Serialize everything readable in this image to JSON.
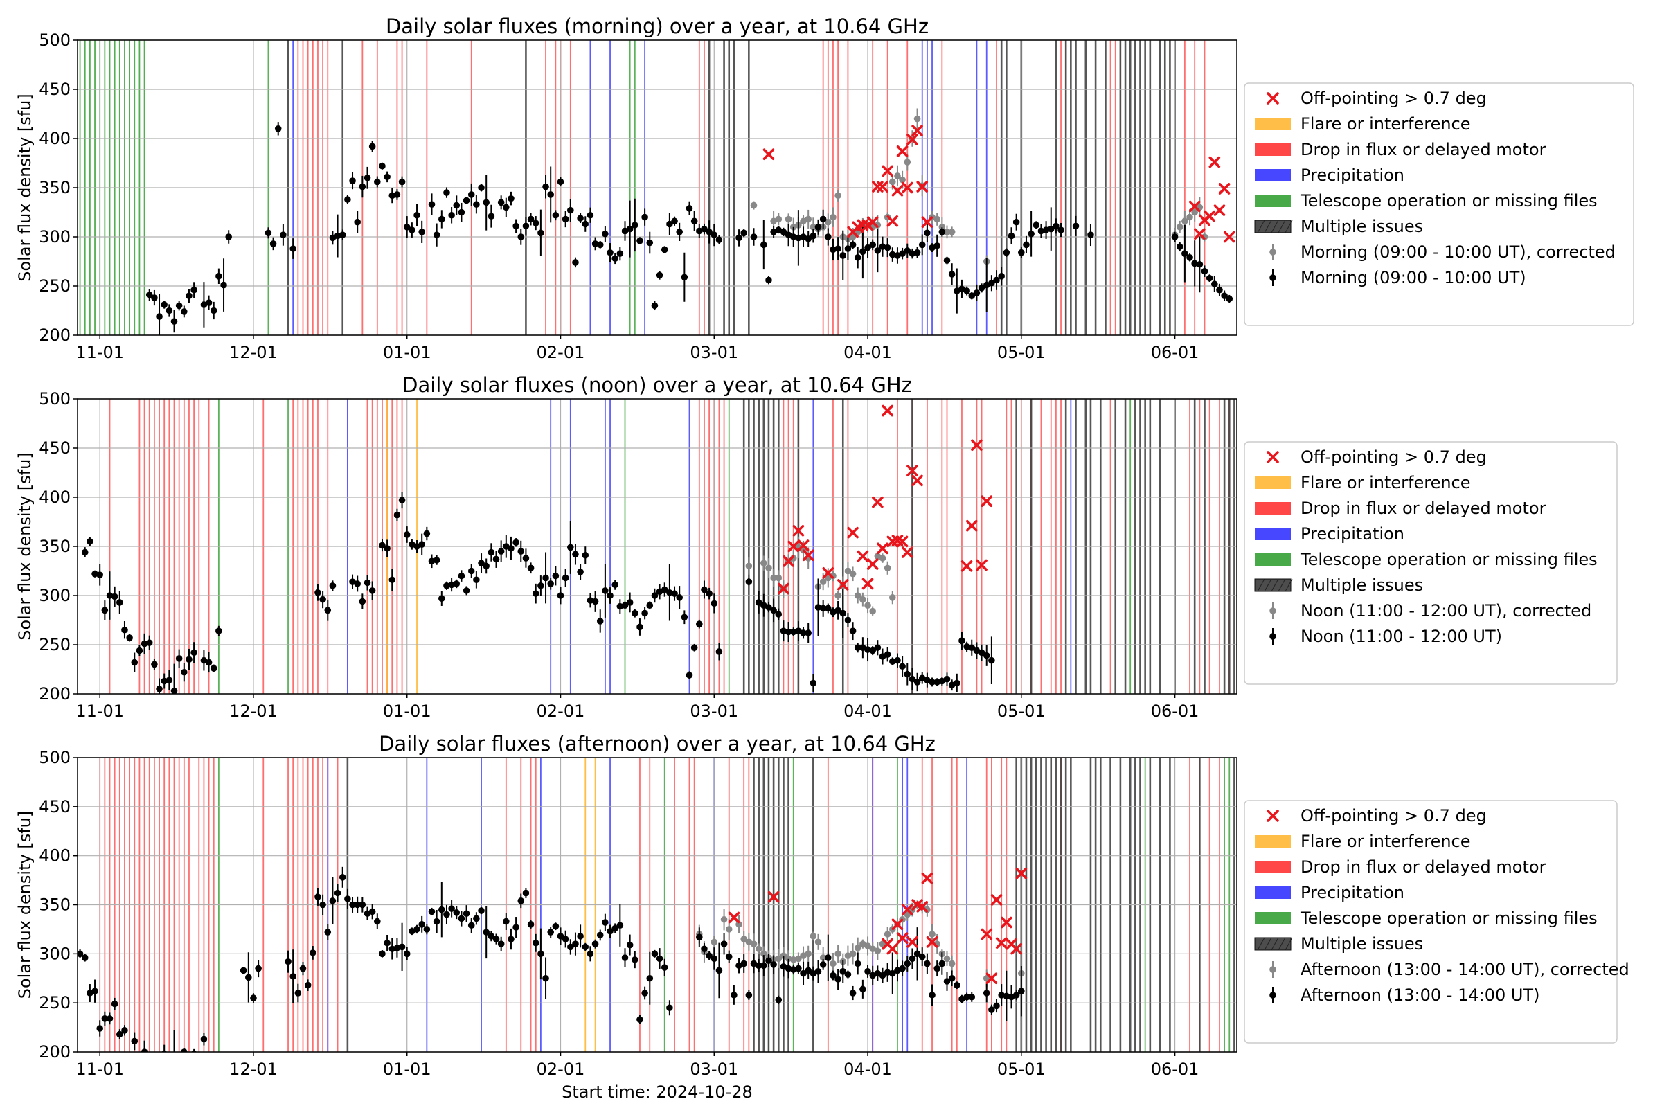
{
  "chart_data": [
    {
      "type": "scatter",
      "title": "Daily solar fluxes (morning) over a year, at 10.64 GHz",
      "ylabel": "Solar flux density [sfu]",
      "xlabel": "",
      "ylim": [
        200,
        500
      ],
      "yticks": [
        "200",
        "250",
        "300",
        "350",
        "400",
        "450",
        "500"
      ],
      "xticks": [
        "11-01",
        "12-01",
        "01-01",
        "02-01",
        "03-01",
        "04-01",
        "05-01",
        "06-01"
      ],
      "grid": true,
      "legend_position": "right",
      "legend": [
        "Off-pointing > 0.7 deg",
        "Flare or interference",
        "Drop in flux or delayed motor",
        "Precipitation",
        "Telescope operation or missing files",
        "Multiple issues",
        "Morning (09:00 - 10:00 UT), corrected",
        "Morning (09:00 - 10:00 UT)"
      ],
      "series": [
        {
          "name": "Morning (09:00 - 10:00 UT)",
          "x": [
            14,
            15,
            16,
            17,
            18,
            19,
            20,
            21,
            22,
            23,
            25,
            26,
            27,
            28,
            29,
            30,
            38,
            39,
            40,
            41,
            43,
            51,
            52,
            53,
            54,
            55,
            56,
            57,
            58,
            59,
            60,
            61,
            62,
            63,
            64,
            65,
            66,
            67,
            68,
            69,
            71,
            72,
            73,
            74,
            75,
            76,
            77,
            78,
            79,
            80,
            81,
            82,
            83,
            85,
            86,
            87,
            88,
            89,
            90,
            91,
            92,
            93,
            94,
            95,
            96,
            97,
            98,
            99,
            100,
            101,
            102,
            103,
            104,
            105,
            106,
            107,
            108,
            109,
            110,
            111,
            112,
            113,
            114,
            115,
            116,
            117,
            118,
            119,
            120,
            121,
            122,
            123,
            124,
            125,
            126,
            127,
            128,
            129,
            133,
            134,
            136,
            138,
            139,
            140,
            141,
            142,
            143,
            144,
            145,
            146,
            147,
            148,
            149,
            150,
            151,
            152,
            153,
            154,
            155,
            156,
            157,
            158,
            159,
            160,
            161,
            162,
            163,
            164,
            165,
            166,
            167,
            168,
            169,
            170,
            171,
            172,
            173,
            174,
            175,
            176,
            177,
            178,
            179,
            180,
            181,
            182,
            183,
            184,
            185,
            186,
            187,
            188,
            189,
            190,
            191,
            192,
            193,
            194,
            195,
            196,
            197,
            198,
            201,
            204,
            221,
            222,
            223,
            224,
            225,
            226,
            227,
            228,
            229,
            230,
            231,
            232
          ],
          "y": [
            241,
            238,
            219,
            231,
            225,
            214,
            230,
            224,
            240,
            246,
            231,
            233,
            225,
            260,
            251,
            300,
            304,
            293,
            410,
            302,
            288,
            299,
            301,
            302,
            338,
            357,
            315,
            351,
            360,
            392,
            356,
            372,
            361,
            342,
            343,
            356,
            310,
            307,
            322,
            305,
            333,
            302,
            318,
            345,
            322,
            332,
            325,
            337,
            343,
            333,
            350,
            335,
            321,
            335,
            330,
            339,
            311,
            300,
            311,
            318,
            314,
            304,
            351,
            343,
            322,
            356,
            318,
            327,
            274,
            319,
            313,
            322,
            293,
            292,
            303,
            284,
            278,
            283,
            306,
            308,
            312,
            296,
            320,
            294,
            230,
            261,
            287,
            313,
            316,
            305,
            259,
            329,
            316,
            306,
            308,
            305,
            302,
            297,
            299,
            304,
            300,
            292,
            256,
            305,
            307,
            305,
            302,
            300,
            299,
            300,
            298,
            301,
            310,
            318,
            300,
            287,
            288,
            281,
            288,
            292,
            279,
            285,
            289,
            292,
            286,
            290,
            289,
            282,
            281,
            283,
            286,
            283,
            284,
            292,
            304,
            289,
            291,
            305,
            276,
            262,
            245,
            247,
            245,
            240,
            243,
            248,
            251,
            253,
            256,
            260,
            284,
            301,
            315,
            284,
            292,
            303,
            312,
            306,
            307,
            308,
            311,
            307,
            311,
            302,
            300,
            290,
            283,
            279,
            273,
            272,
            265,
            258,
            252,
            246,
            240,
            237
          ]
        }
      ]
    },
    {
      "type": "scatter",
      "title": "Daily solar fluxes (noon) over a year, at 10.64 GHz",
      "ylabel": "Solar flux density [sfu]",
      "xlabel": "",
      "ylim": [
        200,
        500
      ],
      "yticks": [
        "200",
        "250",
        "300",
        "350",
        "400",
        "450",
        "500"
      ],
      "xticks": [
        "11-01",
        "12-01",
        "01-01",
        "02-01",
        "03-01",
        "04-01",
        "05-01",
        "06-01"
      ],
      "grid": true,
      "legend_position": "right",
      "legend": [
        "Off-pointing > 0.7 deg",
        "Flare or interference",
        "Drop in flux or delayed motor",
        "Precipitation",
        "Telescope operation or missing files",
        "Multiple issues",
        "Noon (11:00 - 12:00 UT), corrected",
        "Noon (11:00 - 12:00 UT)"
      ],
      "series": [
        {
          "name": "Noon (11:00 - 12:00 UT)",
          "x": [
            1,
            2,
            3,
            4,
            5,
            6,
            7,
            8,
            9,
            10,
            11,
            12,
            13,
            14,
            15,
            16,
            17,
            18,
            19,
            20,
            21,
            22,
            23,
            25,
            26,
            27,
            28
          ],
          "y": [
            344,
            355,
            322,
            321,
            285,
            300,
            299,
            293,
            265,
            257,
            232,
            244,
            251,
            252,
            230,
            205,
            213,
            214,
            203,
            236,
            222,
            235,
            242,
            234,
            232,
            226,
            264
          ]
        }
      ]
    },
    {
      "type": "scatter",
      "title": "Daily solar fluxes (afternoon) over a year, at 10.64 GHz",
      "ylabel": "Solar flux density [sfu]",
      "xlabel": "Start time: 2024-10-28",
      "ylim": [
        200,
        500
      ],
      "yticks": [
        "200",
        "250",
        "300",
        "350",
        "400",
        "450",
        "500"
      ],
      "xticks": [
        "11-01",
        "12-01",
        "01-01",
        "02-01",
        "03-01",
        "04-01",
        "05-01",
        "06-01"
      ],
      "grid": true,
      "legend_position": "right",
      "legend": [
        "Off-pointing > 0.7 deg",
        "Flare or interference",
        "Drop in flux or delayed motor",
        "Precipitation",
        "Telescope operation or missing files",
        "Multiple issues",
        "Afternoon (13:00 - 14:00 UT), corrected",
        "Afternoon (13:00 - 14:00 UT)"
      ],
      "series": [
        {
          "name": "Afternoon (13:00 - 14:00 UT)",
          "x": [
            2,
            3,
            4,
            5,
            6,
            7,
            8,
            9,
            10,
            11,
            12
          ],
          "y": [
            300,
            296,
            260,
            262,
            224,
            234,
            234,
            249,
            218,
            222,
            200
          ]
        }
      ]
    }
  ],
  "colors": {
    "offpointing": "#e8161c",
    "flare": "#ffb733",
    "drop": "#ff3333",
    "precip": "#3333ff",
    "telescope": "#33a033",
    "multiple": "#444444",
    "corrected": "#888888",
    "raw": "#000000",
    "grid": "#b0b0b0"
  }
}
